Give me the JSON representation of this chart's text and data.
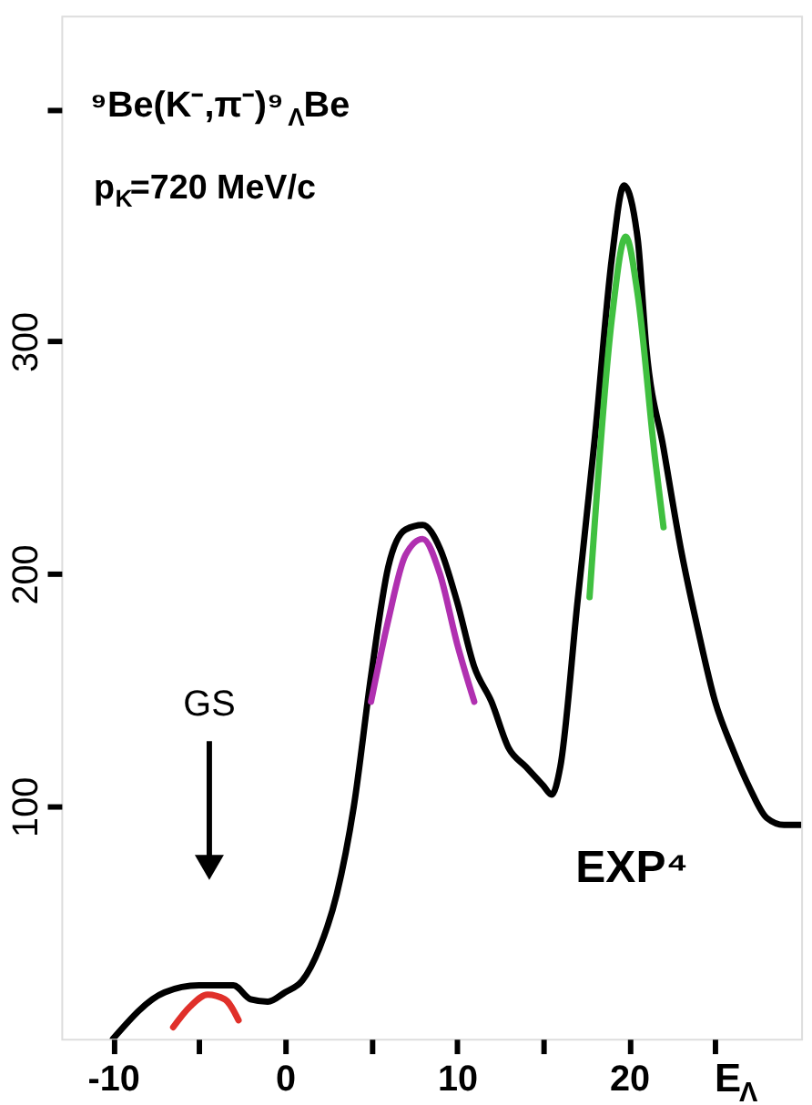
{
  "chart_data": {
    "type": "line",
    "xlabel": "E$_{Λ}$",
    "xlim": [
      -13,
      30
    ],
    "xticks": [
      -10,
      {
        "value": -5,
        "label": null
      },
      0,
      {
        "value": 5,
        "label": null
      },
      10,
      {
        "value": 15,
        "label": null
      },
      20,
      {
        "value": 25,
        "label": null
      }
    ],
    "ylim": [
      0,
      440
    ],
    "yticks": [
      100,
      200,
      300,
      {
        "value": 400,
        "label": null
      }
    ],
    "marker": "none",
    "line_style": "solid",
    "series": [
      {
        "color": "#000000",
        "x": [
          -10,
          -7,
          -5,
          -3,
          -2,
          -1,
          0,
          1,
          2,
          3,
          4,
          5,
          6,
          7,
          8,
          9,
          10,
          11,
          12,
          13,
          14,
          15,
          15.5,
          16,
          17,
          18,
          19,
          19.7,
          20.5,
          21,
          22,
          23,
          24,
          25,
          26,
          27,
          28,
          29,
          30
        ],
        "values": [
          0,
          20,
          23,
          23,
          17,
          16,
          20,
          25,
          39,
          62,
          100,
          156,
          203,
          219,
          221,
          211,
          188,
          160,
          145,
          125,
          117,
          109,
          105,
          117,
          188,
          258,
          336,
          367,
          344,
          297,
          254,
          211,
          176,
          145,
          125,
          108,
          95,
          92,
          92
        ]
      },
      {
        "color": "#e0302a",
        "x": [
          -6.5,
          -5.5,
          -4.5,
          -3.5,
          -2.7
        ],
        "values": [
          5,
          14,
          19,
          17,
          8
        ]
      },
      {
        "color": "#b030b0",
        "x": [
          5,
          6,
          7,
          8,
          9,
          10,
          11
        ],
        "values": [
          145,
          180,
          208,
          215,
          200,
          170,
          145
        ]
      },
      {
        "color": "#40c040",
        "x": [
          17.7,
          19,
          19.8,
          20.5,
          21.5,
          22
        ],
        "values": [
          190,
          310,
          345,
          320,
          250,
          220
        ]
      }
    ],
    "annotations": [
      "⁹Be(K⁻,π⁻)⁹$_{Λ}$Be",
      "p$_{K}$=720 MeV/c",
      "GS",
      "EXP⁴"
    ]
  }
}
